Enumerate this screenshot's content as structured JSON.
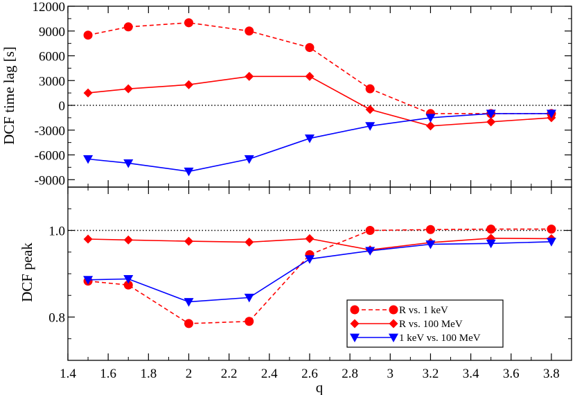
{
  "chart_data": {
    "type": "line",
    "xlabel": "q",
    "xlim": [
      1.4,
      3.9
    ],
    "x_ticks": [
      "1.4",
      "1.6",
      "1.8",
      "2",
      "2.2",
      "2.4",
      "2.6",
      "2.8",
      "3",
      "3.2",
      "3.4",
      "3.6",
      "3.8"
    ],
    "x": [
      1.5,
      1.7,
      2.0,
      2.3,
      2.6,
      2.9,
      3.2,
      3.5,
      3.8
    ],
    "panels": [
      {
        "id": "top",
        "ylabel": "DCF time lag [s]",
        "ylim": [
          -9900,
          12000
        ],
        "y_ticks": [
          "12000",
          "9000",
          "6000",
          "3000",
          "0",
          "-3000",
          "-6000",
          "-9000"
        ],
        "reference_line": 0,
        "series": [
          {
            "name": "R vs. 1 keV",
            "color": "#ff0000",
            "dashed": true,
            "marker": "circle",
            "values": [
              8500,
              9500,
              10000,
              9000,
              7000,
              2000,
              -1000,
              -1000,
              -1000
            ]
          },
          {
            "name": "R vs. 100 MeV",
            "color": "#ff0000",
            "dashed": false,
            "marker": "diamond",
            "values": [
              1500,
              2000,
              2500,
              3500,
              3500,
              -500,
              -2500,
              -2000,
              -1500
            ]
          },
          {
            "name": "1 keV vs. 100 MeV",
            "color": "#0000ff",
            "dashed": false,
            "marker": "triangle-down",
            "values": [
              -6500,
              -7000,
              -8000,
              -6500,
              -4000,
              -2500,
              -1500,
              -1000,
              -1000
            ]
          }
        ]
      },
      {
        "id": "bottom",
        "ylabel": "DCF peak",
        "ylim": [
          0.7,
          1.1
        ],
        "y_ticks": [
          "1.0",
          "0.8"
        ],
        "reference_line": 1.0,
        "series": [
          {
            "name": "R vs. 1 keV",
            "color": "#ff0000",
            "dashed": true,
            "marker": "circle",
            "values": [
              0.883,
              0.874,
              0.785,
              0.79,
              0.944,
              1.0,
              1.002,
              1.003,
              1.003
            ]
          },
          {
            "name": "R vs. 100 MeV",
            "color": "#ff0000",
            "dashed": false,
            "marker": "diamond",
            "values": [
              0.98,
              0.978,
              0.975,
              0.973,
              0.981,
              0.955,
              0.972,
              0.982,
              0.981
            ]
          },
          {
            "name": "1 keV vs. 100 MeV",
            "color": "#0000ff",
            "dashed": false,
            "marker": "triangle-down",
            "values": [
              0.886,
              0.888,
              0.835,
              0.845,
              0.934,
              0.953,
              0.968,
              0.97,
              0.974
            ]
          }
        ]
      }
    ],
    "legend": {
      "placement": "bottom-right",
      "entries": [
        "R vs. 1 keV",
        "R vs. 100 MeV",
        "1 keV vs. 100 MeV"
      ]
    }
  }
}
